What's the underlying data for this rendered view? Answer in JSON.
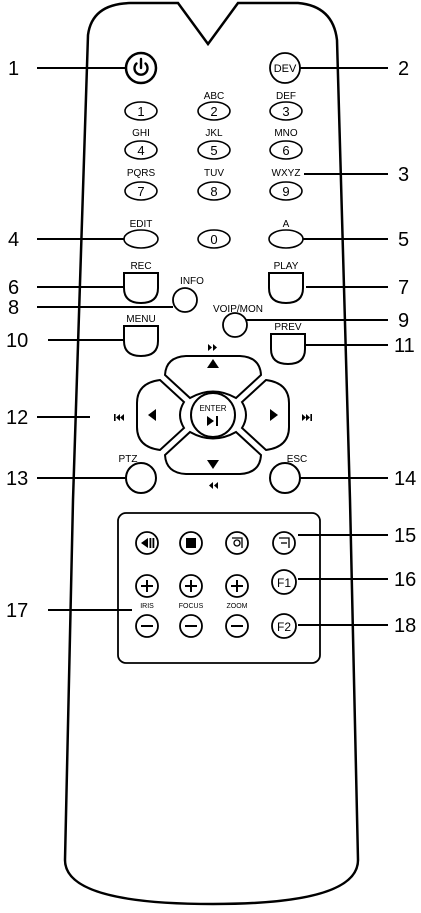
{
  "callouts": {
    "n1": "1",
    "n2": "2",
    "n3": "3",
    "n4": "4",
    "n5": "5",
    "n6": "6",
    "n7": "7",
    "n8": "8",
    "n9": "9",
    "n10": "10",
    "n11": "11",
    "n12": "12",
    "n13": "13",
    "n14": "14",
    "n15": "15",
    "n16": "16",
    "n17": "17",
    "n18": "18"
  },
  "top": {
    "dev": "DEV"
  },
  "keypad": {
    "k1": "1",
    "k2": "2",
    "k3": "3",
    "k4": "4",
    "k5": "5",
    "k6": "6",
    "k7": "7",
    "k8": "8",
    "k9": "9",
    "k0": "0",
    "l2": "ABC",
    "l3": "DEF",
    "l4": "GHI",
    "l5": "JKL",
    "l6": "MNO",
    "l7": "PQRS",
    "l8": "TUV",
    "l9": "WXYZ"
  },
  "labels": {
    "edit": "EDIT",
    "a": "A",
    "rec": "REC",
    "info": "INFO",
    "play": "PLAY",
    "voip": "VOIP/MON",
    "menu": "MENU",
    "prev": "PREV",
    "ptz": "PTZ",
    "esc": "ESC"
  },
  "dpad": {
    "enter": "ENTER"
  },
  "lens": {
    "iris": "IRIS",
    "focus": "FOCUS",
    "zoom": "ZOOM",
    "f1": "F1",
    "f2": "F2"
  }
}
